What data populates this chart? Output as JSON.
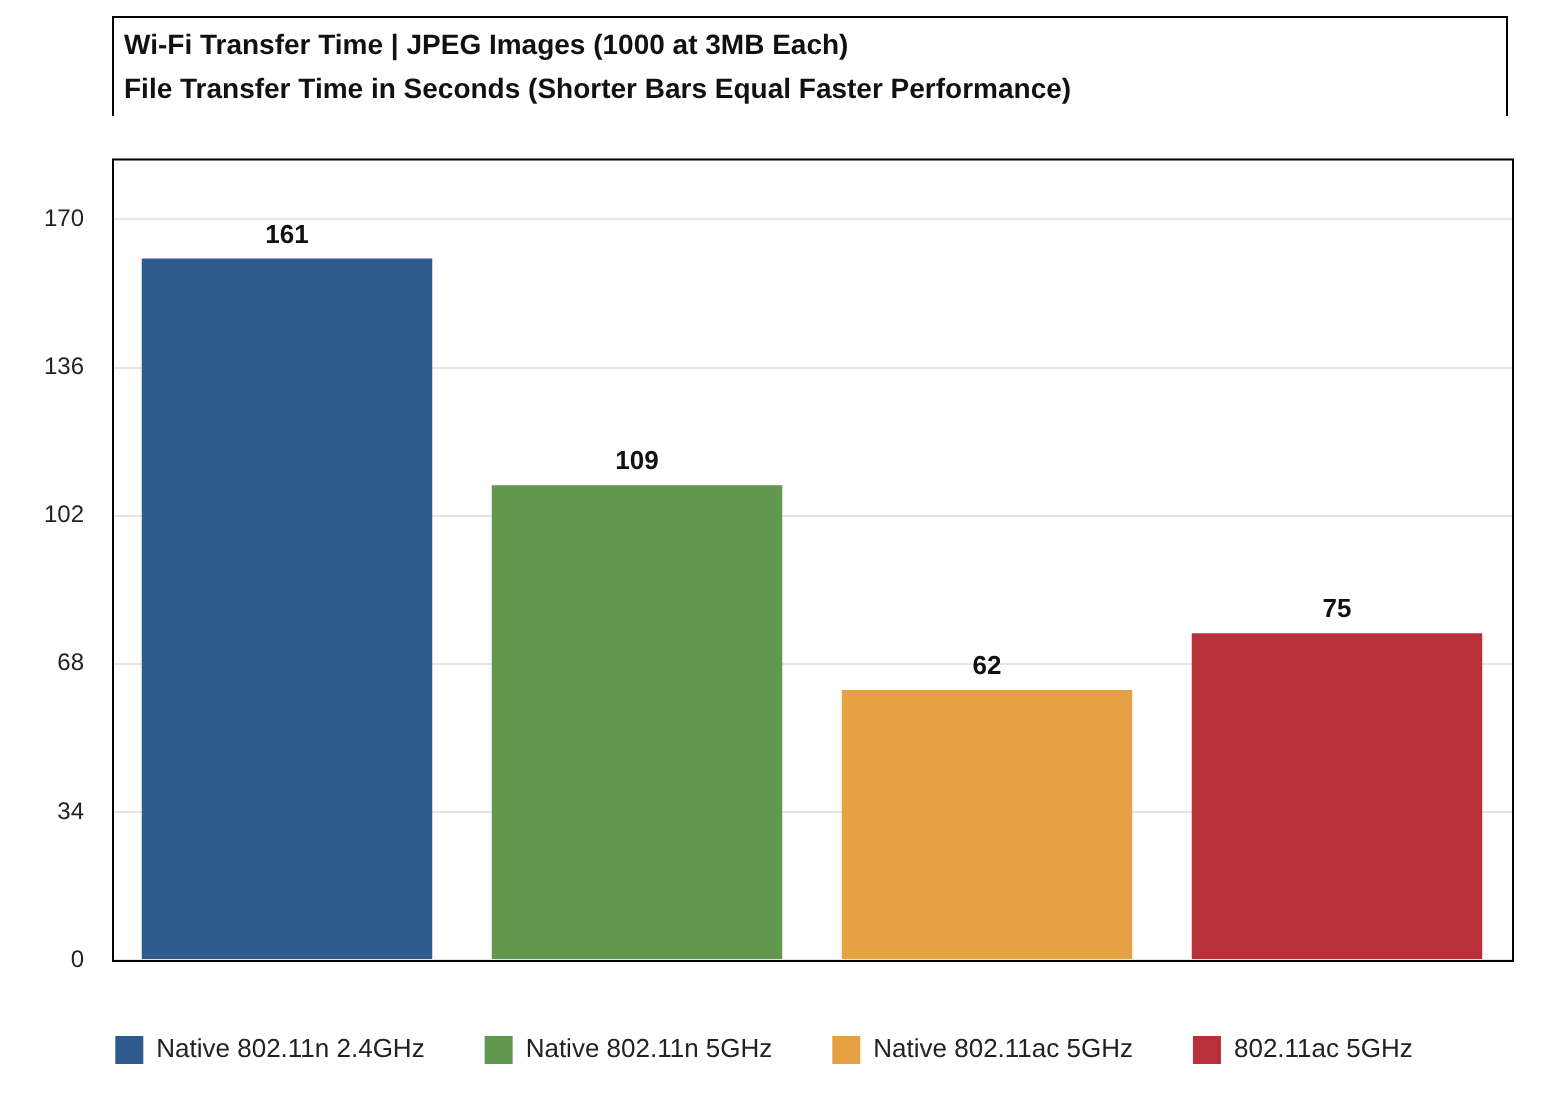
{
  "chart_data": {
    "type": "bar",
    "title": "Wi-Fi Transfer Time | JPEG Images (1000 at 3MB Each)",
    "subtitle": "File Transfer Time in Seconds (Shorter Bars Equal Faster Performance)",
    "categories": [
      null,
      null,
      null,
      null
    ],
    "series": [
      {
        "name": "Native 802.11n 2.4GHz",
        "color": "#2f5a8c",
        "values": [
          161,
          null,
          null,
          null
        ]
      },
      {
        "name": "Native 802.11n 5GHz",
        "color": "#62984e",
        "values": [
          null,
          109,
          null,
          null
        ]
      },
      {
        "name": "Native 802.11ac 5GHz",
        "color": "#e6a145",
        "values": [
          null,
          null,
          62,
          null
        ]
      },
      {
        "name": "802.11ac 5GHz",
        "color": "#b7303a",
        "values": [
          null,
          null,
          null,
          75
        ]
      }
    ],
    "ylim": [
      0,
      184
    ],
    "yticks": [
      0,
      34,
      68,
      102,
      136,
      170
    ],
    "grid": "y",
    "legend": "bottom",
    "data_labels": true
  }
}
